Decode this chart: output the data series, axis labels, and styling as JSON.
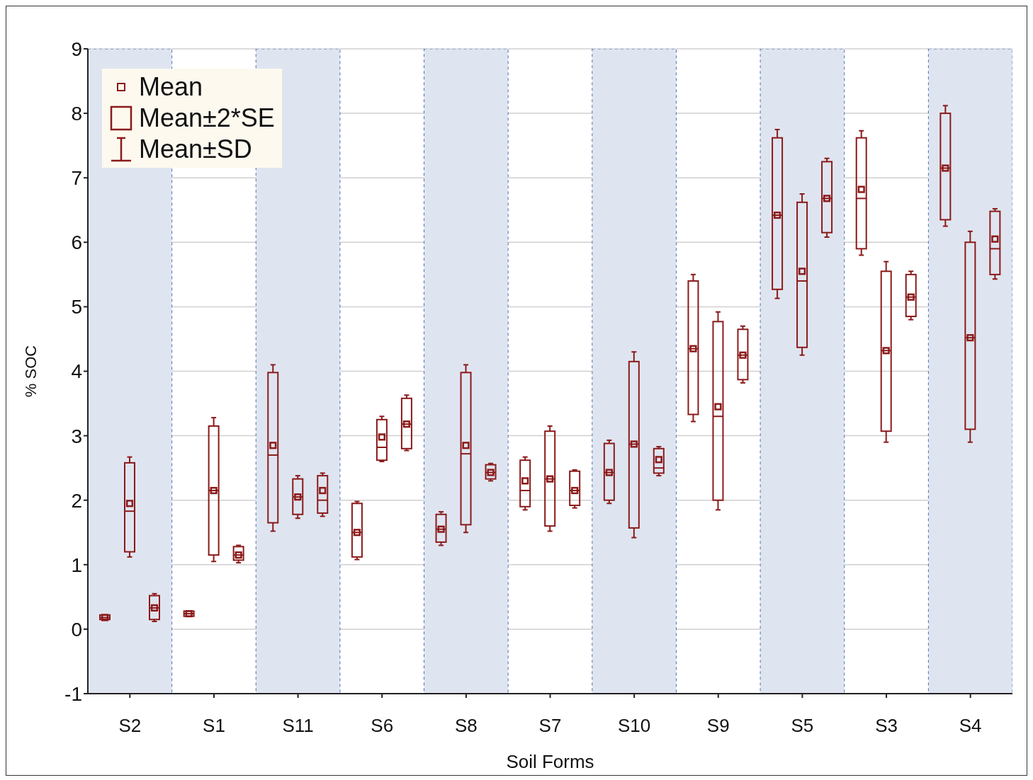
{
  "chart_data": {
    "type": "box",
    "xlabel": "Soil Forms",
    "ylabel": "% SOC",
    "categories": [
      "S2",
      "S1",
      "S11",
      "S6",
      "S8",
      "S7",
      "S10",
      "S9",
      "S5",
      "S3",
      "S4"
    ],
    "ylim": [
      -1,
      9
    ],
    "yticks": [
      -1,
      0,
      1,
      2,
      3,
      4,
      5,
      6,
      7,
      8,
      9
    ],
    "grid": "y",
    "annotations": [
      "Mean",
      "Mean±2*SE",
      "Mean±SD"
    ],
    "bands": [
      {
        "axis": "x",
        "from": "S2",
        "to": "S2",
        "color": "#dfe5f0"
      },
      {
        "axis": "x",
        "from": "S11",
        "to": "S11",
        "color": "#dfe5f0"
      },
      {
        "axis": "x",
        "from": "S8",
        "to": "S8",
        "color": "#dfe5f0"
      },
      {
        "axis": "x",
        "from": "S10",
        "to": "S10",
        "color": "#dfe5f0"
      },
      {
        "axis": "x",
        "from": "S5",
        "to": "S5",
        "color": "#dfe5f0"
      },
      {
        "axis": "x",
        "from": "S4",
        "to": "S4",
        "color": "#dfe5f0"
      }
    ],
    "series": [
      {
        "color": "#8b1a1a",
        "boxes": [
          {
            "low": 0.15,
            "q1": 0.15,
            "median": 0.18,
            "q3": 0.22,
            "high": 0.22,
            "mean": 0.18
          },
          {
            "low": 0.2,
            "q1": 0.2,
            "median": 0.24,
            "q3": 0.28,
            "high": 0.28,
            "mean": 0.24
          },
          {
            "low": 1.52,
            "q1": 1.65,
            "median": 2.7,
            "q3": 3.98,
            "high": 4.1,
            "mean": 2.85
          },
          {
            "low": 1.08,
            "q1": 1.12,
            "median": 1.5,
            "q3": 1.95,
            "high": 1.98,
            "mean": 1.5
          },
          {
            "low": 1.3,
            "q1": 1.35,
            "median": 1.55,
            "q3": 1.78,
            "high": 1.82,
            "mean": 1.55
          },
          {
            "low": 1.85,
            "q1": 1.9,
            "median": 2.15,
            "q3": 2.62,
            "high": 2.67,
            "mean": 2.3
          },
          {
            "low": 1.95,
            "q1": 2.0,
            "median": 2.43,
            "q3": 2.88,
            "high": 2.93,
            "mean": 2.43
          },
          {
            "low": 3.22,
            "q1": 3.33,
            "median": 4.35,
            "q3": 5.4,
            "high": 5.5,
            "mean": 4.35
          },
          {
            "low": 5.13,
            "q1": 5.27,
            "median": 6.42,
            "q3": 7.62,
            "high": 7.75,
            "mean": 6.42
          },
          {
            "low": 5.8,
            "q1": 5.9,
            "median": 6.68,
            "q3": 7.62,
            "high": 7.73,
            "mean": 6.82
          },
          {
            "low": 6.25,
            "q1": 6.35,
            "median": 7.15,
            "q3": 8.0,
            "high": 8.12,
            "mean": 7.15
          }
        ]
      },
      {
        "color": "#8b1a1a",
        "boxes": [
          {
            "low": 1.12,
            "q1": 1.2,
            "median": 1.83,
            "q3": 2.58,
            "high": 2.67,
            "mean": 1.95
          },
          {
            "low": 1.05,
            "q1": 1.15,
            "median": 2.15,
            "q3": 3.15,
            "high": 3.28,
            "mean": 2.15
          },
          {
            "low": 1.72,
            "q1": 1.78,
            "median": 2.05,
            "q3": 2.33,
            "high": 2.38,
            "mean": 2.05
          },
          {
            "low": 2.6,
            "q1": 2.62,
            "median": 2.82,
            "q3": 3.25,
            "high": 3.3,
            "mean": 2.98
          },
          {
            "low": 1.5,
            "q1": 1.62,
            "median": 2.72,
            "q3": 3.98,
            "high": 4.1,
            "mean": 2.85
          },
          {
            "low": 1.52,
            "q1": 1.6,
            "median": 2.33,
            "q3": 3.07,
            "high": 3.15,
            "mean": 2.33
          },
          {
            "low": 1.42,
            "q1": 1.57,
            "median": 2.87,
            "q3": 4.15,
            "high": 4.3,
            "mean": 2.87
          },
          {
            "low": 1.85,
            "q1": 2.0,
            "median": 3.3,
            "q3": 4.77,
            "high": 4.92,
            "mean": 3.45
          },
          {
            "low": 4.25,
            "q1": 4.37,
            "median": 5.4,
            "q3": 6.62,
            "high": 6.75,
            "mean": 5.55
          },
          {
            "low": 2.9,
            "q1": 3.07,
            "median": 4.32,
            "q3": 5.55,
            "high": 5.7,
            "mean": 4.32
          },
          {
            "low": 2.9,
            "q1": 3.1,
            "median": 4.52,
            "q3": 6.0,
            "high": 6.17,
            "mean": 4.52
          }
        ]
      },
      {
        "color": "#8b1a1a",
        "boxes": [
          {
            "low": 0.12,
            "q1": 0.15,
            "median": 0.33,
            "q3": 0.52,
            "high": 0.55,
            "mean": 0.33
          },
          {
            "low": 1.03,
            "q1": 1.07,
            "median": 1.15,
            "q3": 1.28,
            "high": 1.3,
            "mean": 1.15
          },
          {
            "low": 1.75,
            "q1": 1.8,
            "median": 2.0,
            "q3": 2.38,
            "high": 2.42,
            "mean": 2.15
          },
          {
            "low": 2.77,
            "q1": 2.8,
            "median": 3.18,
            "q3": 3.58,
            "high": 3.63,
            "mean": 3.18
          },
          {
            "low": 2.3,
            "q1": 2.33,
            "median": 2.43,
            "q3": 2.55,
            "high": 2.57,
            "mean": 2.43
          },
          {
            "low": 1.88,
            "q1": 1.92,
            "median": 2.15,
            "q3": 2.45,
            "high": 2.47,
            "mean": 2.15
          },
          {
            "low": 2.38,
            "q1": 2.42,
            "median": 2.5,
            "q3": 2.8,
            "high": 2.83,
            "mean": 2.63
          },
          {
            "low": 3.82,
            "q1": 3.87,
            "median": 4.25,
            "q3": 4.65,
            "high": 4.7,
            "mean": 4.25
          },
          {
            "low": 6.08,
            "q1": 6.15,
            "median": 6.68,
            "q3": 7.25,
            "high": 7.3,
            "mean": 6.68
          },
          {
            "low": 4.8,
            "q1": 4.85,
            "median": 5.15,
            "q3": 5.5,
            "high": 5.55,
            "mean": 5.15
          },
          {
            "low": 5.43,
            "q1": 5.5,
            "median": 5.9,
            "q3": 6.48,
            "high": 6.52,
            "mean": 6.05
          }
        ]
      }
    ]
  }
}
